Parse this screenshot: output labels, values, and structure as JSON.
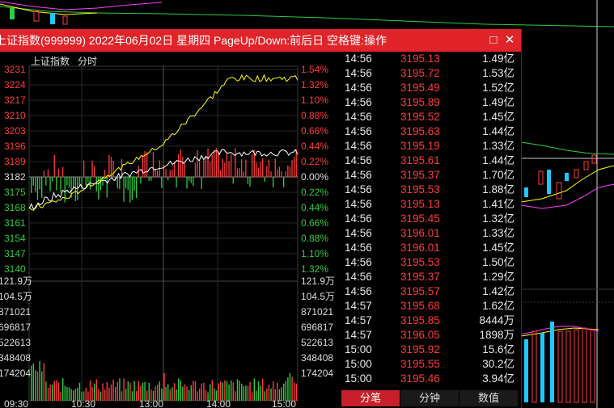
{
  "window": {
    "title": "上证指数(999999) 2022年06月02日 星期四 PageUp/Down:前后日 空格键:操作",
    "maximize_icon": "□",
    "close_icon": "✕"
  },
  "chart_header": {
    "name": "上证指数",
    "tab": "分时"
  },
  "price_axis_left": [
    "3231",
    "3224",
    "3217",
    "3210",
    "3203",
    "3196",
    "3189",
    "3182",
    "3175",
    "3168",
    "3161",
    "3154",
    "3147",
    "3140"
  ],
  "pct_axis_right": [
    "1.54%",
    "1.32%",
    "1.10%",
    "0.88%",
    "0.66%",
    "0.44%",
    "0.22%",
    "0.00%",
    "0.22%",
    "0.44%",
    "0.66%",
    "0.88%",
    "1.10%",
    "1.32%"
  ],
  "volume_axis_left": [
    "121.9万",
    "104.5万",
    "871021",
    "696817",
    "522613",
    "348408",
    "174204"
  ],
  "volume_axis_right": [
    "121.9万",
    "104.5万",
    "871021",
    "696817",
    "522613",
    "348408",
    "174204"
  ],
  "time_axis": [
    "09:30",
    "10:30",
    "13:00",
    "14:00",
    "15:00"
  ],
  "ticks": [
    {
      "time": "14:56",
      "price": "3195.13",
      "vol": "1.49亿"
    },
    {
      "time": "14:56",
      "price": "3195.72",
      "vol": "1.53亿"
    },
    {
      "time": "14:56",
      "price": "3195.49",
      "vol": "1.52亿"
    },
    {
      "time": "14:56",
      "price": "3195.89",
      "vol": "1.49亿"
    },
    {
      "time": "14:56",
      "price": "3195.52",
      "vol": "1.45亿"
    },
    {
      "time": "14:56",
      "price": "3195.63",
      "vol": "1.44亿"
    },
    {
      "time": "14:56",
      "price": "3195.19",
      "vol": "1.33亿"
    },
    {
      "time": "14:56",
      "price": "3195.61",
      "vol": "1.44亿"
    },
    {
      "time": "14:56",
      "price": "3195.37",
      "vol": "1.70亿"
    },
    {
      "time": "14:56",
      "price": "3195.53",
      "vol": "1.88亿"
    },
    {
      "time": "14:56",
      "price": "3195.13",
      "vol": "1.41亿"
    },
    {
      "time": "14:56",
      "price": "3195.45",
      "vol": "1.32亿"
    },
    {
      "time": "14:56",
      "price": "3196.01",
      "vol": "1.33亿"
    },
    {
      "time": "14:56",
      "price": "3196.01",
      "vol": "1.45亿"
    },
    {
      "time": "14:56",
      "price": "3195.53",
      "vol": "1.50亿"
    },
    {
      "time": "14:56",
      "price": "3195.37",
      "vol": "1.29亿"
    },
    {
      "time": "14:56",
      "price": "3195.57",
      "vol": "1.42亿"
    },
    {
      "time": "14:57",
      "price": "3195.68",
      "vol": "1.62亿"
    },
    {
      "time": "14:57",
      "price": "3195.85",
      "vol": "8444万"
    },
    {
      "time": "14:57",
      "price": "3196.05",
      "vol": "1898万"
    },
    {
      "time": "15:00",
      "price": "3195.92",
      "vol": "15.6亿"
    },
    {
      "time": "15:00",
      "price": "3195.55",
      "vol": "30.2亿"
    },
    {
      "time": "15:00",
      "price": "3195.46",
      "vol": "3.94亿"
    }
  ],
  "bottom_tabs": [
    "分笔",
    "分钟",
    "数值"
  ],
  "colors": {
    "up": "#ff3b3b",
    "down": "#2ecc40",
    "title_bar": "#e0242a",
    "price_line": "#ffffff",
    "avg_line": "#ffff00"
  }
}
